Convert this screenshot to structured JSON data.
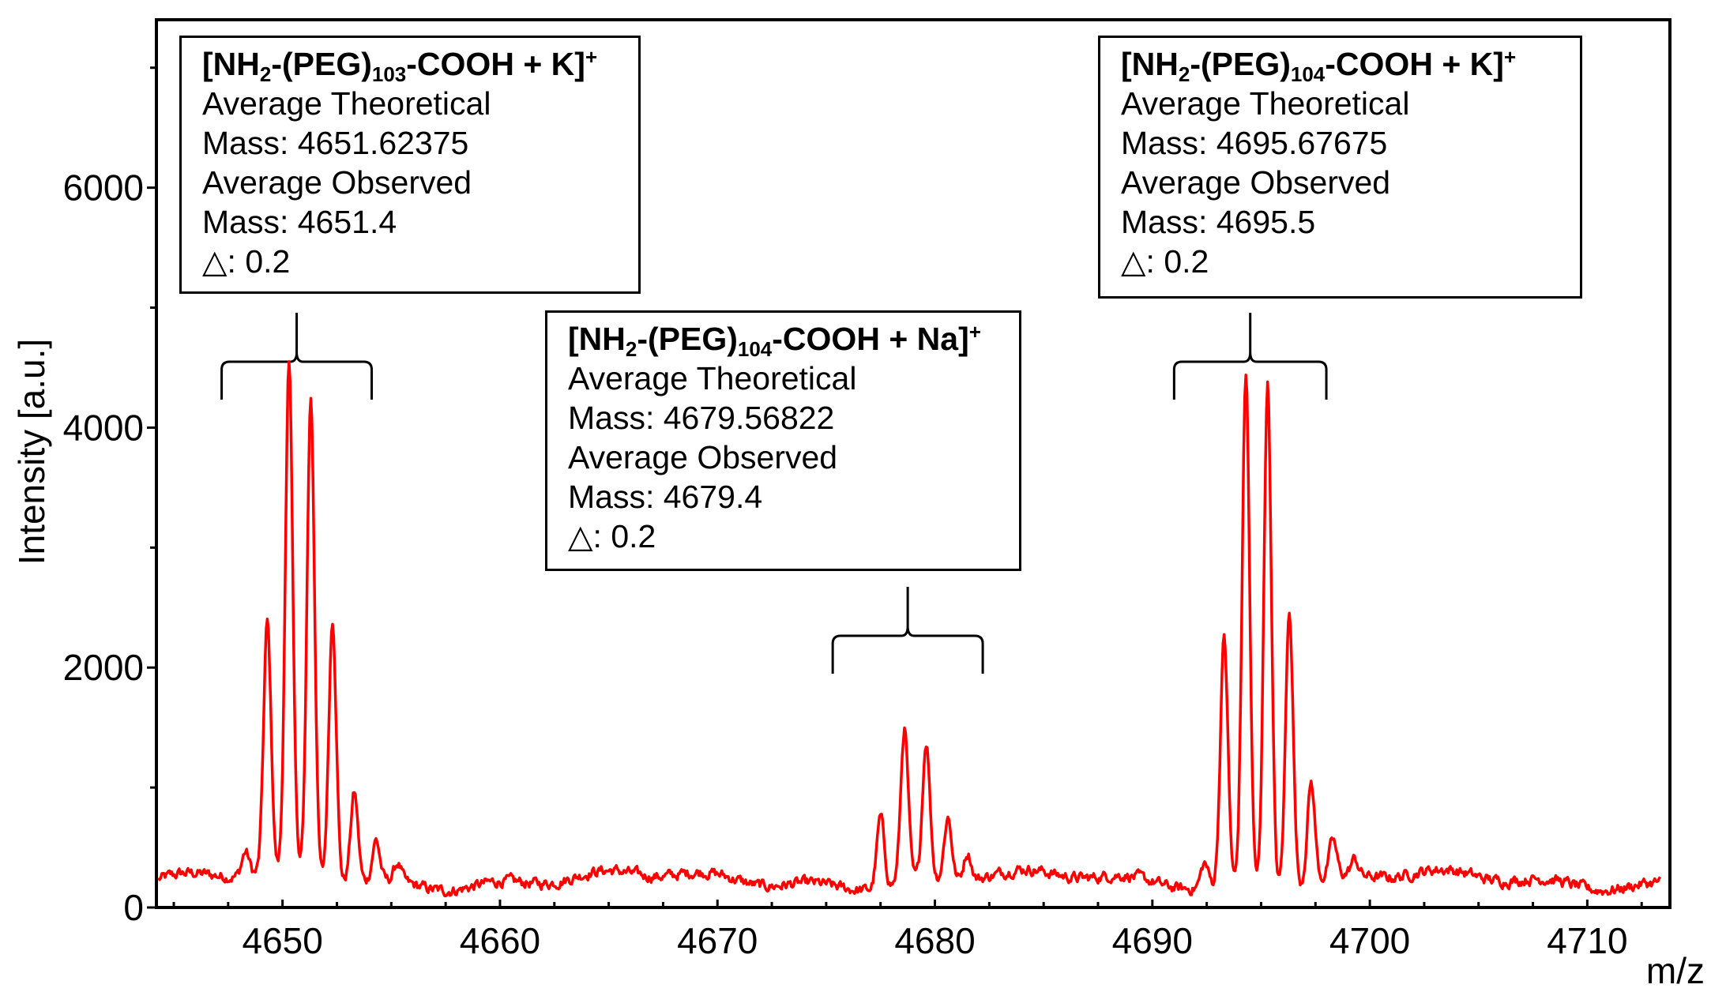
{
  "chart_data": {
    "type": "line",
    "xlabel": "m/z",
    "ylabel": "Intensity [a.u.]",
    "xlim": [
      4644.2,
      4713.8
    ],
    "ylim": [
      0,
      7400
    ],
    "x_ticks": [
      4650,
      4660,
      4670,
      4680,
      4690,
      4700,
      4710
    ],
    "y_ticks": [
      0,
      2000,
      4000,
      6000
    ],
    "line_color": "#ff0000",
    "grid": false,
    "series": [
      {
        "baseline": 230,
        "peaks": [
          [
            4648.3,
            200
          ],
          [
            4649.3,
            2080
          ],
          [
            4650.3,
            4200
          ],
          [
            4651.3,
            3980
          ],
          [
            4652.3,
            2180
          ],
          [
            4653.3,
            750
          ],
          [
            4654.3,
            340
          ],
          [
            4655.3,
            150
          ],
          [
            4677.5,
            590
          ],
          [
            4678.6,
            1270
          ],
          [
            4679.6,
            1140
          ],
          [
            4680.6,
            520
          ],
          [
            4681.5,
            230
          ],
          [
            4692.4,
            200
          ],
          [
            4693.3,
            2060
          ],
          [
            4694.3,
            4260
          ],
          [
            4695.3,
            4210
          ],
          [
            4696.3,
            2320
          ],
          [
            4697.3,
            830
          ],
          [
            4698.3,
            300
          ],
          [
            4699.3,
            130
          ]
        ]
      }
    ],
    "annotations": [
      {
        "formula": {
          "pre": "[NH",
          "s1": "2",
          "mid": "-(PEG)",
          "s2": "103",
          "post": "-COOH + K]",
          "charge": "+"
        },
        "lines": [
          "Average Theoretical",
          "Mass: 4651.62375",
          "Average Observed",
          "Mass: 4651.4",
          "△: 0.2"
        ],
        "bracket_range": [
          4647.2,
          4654.1
        ]
      },
      {
        "formula": {
          "pre": "[NH",
          "s1": "2",
          "mid": "-(PEG)",
          "s2": "104",
          "post": "-COOH + Na]",
          "charge": "+"
        },
        "lines": [
          "Average Theoretical",
          "Mass: 4679.56822",
          "Average Observed",
          "Mass: 4679.4",
          "△: 0.2"
        ],
        "bracket_range": [
          4675.3,
          4682.2
        ]
      },
      {
        "formula": {
          "pre": "[NH",
          "s1": "2",
          "mid": "-(PEG)",
          "s2": "104",
          "post": "-COOH + K]",
          "charge": "+"
        },
        "lines": [
          "Average Theoretical",
          "Mass: 4695.67675",
          "Average Observed",
          "Mass: 4695.5",
          "△: 0.2"
        ],
        "bracket_range": [
          4691.0,
          4698.0
        ]
      }
    ]
  }
}
